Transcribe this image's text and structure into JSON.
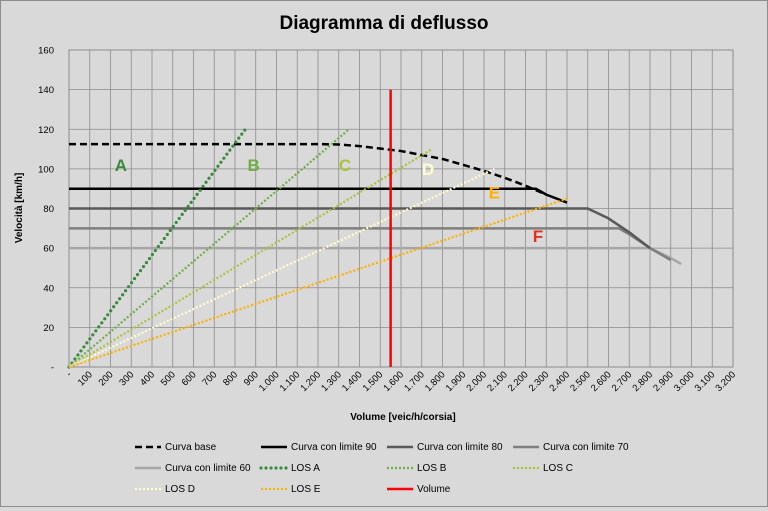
{
  "chart_data": {
    "type": "line",
    "title": "Diagramma di deflusso",
    "xlabel": "Volume [veic/h/corsia]",
    "ylabel": "Velocità [km/h]",
    "xlim": [
      0,
      3200
    ],
    "ylim": [
      0,
      160
    ],
    "x_ticks": [
      "-",
      "100",
      "200",
      "300",
      "400",
      "500",
      "600",
      "700",
      "800",
      "900",
      "1.000",
      "1.100",
      "1.200",
      "1.300",
      "1.400",
      "1.500",
      "1.600",
      "1.700",
      "1.800",
      "1.900",
      "2.000",
      "2.100",
      "2.200",
      "2.300",
      "2.400",
      "2.500",
      "2.600",
      "2.700",
      "2.800",
      "2.900",
      "3.000",
      "3.100",
      "3.200"
    ],
    "y_ticks": [
      "-",
      "20",
      "40",
      "60",
      "80",
      "100",
      "120",
      "140",
      "160"
    ],
    "grid": true,
    "legend_position": "bottom",
    "series": [
      {
        "name": "Curva base",
        "color": "#000000",
        "style": "dashed",
        "x": [
          0,
          400,
          800,
          1200,
          1300,
          1400,
          1600,
          1800,
          2000,
          2100,
          2200,
          2300
        ],
        "y": [
          112.5,
          112.5,
          112.5,
          112.5,
          112.3,
          111.5,
          109,
          105,
          99,
          95.5,
          91.5,
          87
        ]
      },
      {
        "name": "Curva con limite 90",
        "color": "#000000",
        "style": "solid",
        "x": [
          0,
          2250,
          2300,
          2400
        ],
        "y": [
          90,
          90,
          87,
          83
        ]
      },
      {
        "name": "Curva con limite 80",
        "color": "#595959",
        "style": "solid",
        "x": [
          0,
          2500,
          2600,
          2700,
          2800
        ],
        "y": [
          80,
          80,
          75,
          68,
          60
        ]
      },
      {
        "name": "Curva con limite 70",
        "color": "#7f7f7f",
        "style": "solid",
        "x": [
          0,
          2650,
          2700,
          2800,
          2900
        ],
        "y": [
          70,
          70,
          67,
          60,
          54
        ]
      },
      {
        "name": "Curva con limite 60",
        "color": "#a6a6a6",
        "style": "solid",
        "x": [
          0,
          2800,
          2900,
          2950
        ],
        "y": [
          60,
          60,
          55,
          52
        ]
      },
      {
        "name": "LOS A",
        "color": "#3a8a3c",
        "style": "dotted-round",
        "x": [
          0,
          850
        ],
        "y": [
          0,
          120
        ]
      },
      {
        "name": "LOS B",
        "color": "#70ad47",
        "style": "dotted",
        "x": [
          0,
          1350
        ],
        "y": [
          0,
          120
        ]
      },
      {
        "name": "LOS C",
        "color": "#a9c23f",
        "style": "dotted",
        "x": [
          0,
          1750
        ],
        "y": [
          0,
          110
        ]
      },
      {
        "name": "LOS D",
        "color": "#ffffcc",
        "style": "dotted",
        "x": [
          0,
          2050
        ],
        "y": [
          0,
          100
        ]
      },
      {
        "name": "LOS E",
        "color": "#ffb000",
        "style": "dotted",
        "x": [
          0,
          2400
        ],
        "y": [
          0,
          85
        ]
      },
      {
        "name": "Volume",
        "color": "#ff0000",
        "style": "solid",
        "x": [
          1550,
          1550
        ],
        "y": [
          0,
          140
        ]
      }
    ],
    "annotations": [
      {
        "text": "A",
        "x": 250,
        "y": 99,
        "color": "#3a8a3c"
      },
      {
        "text": "B",
        "x": 890,
        "y": 99,
        "color": "#70ad47"
      },
      {
        "text": "C",
        "x": 1330,
        "y": 99,
        "color": "#a9c23f"
      },
      {
        "text": "D",
        "x": 1730,
        "y": 97,
        "color": "#ffffcc"
      },
      {
        "text": "E",
        "x": 2050,
        "y": 85,
        "color": "#ffb000"
      },
      {
        "text": "F",
        "x": 2260,
        "y": 63,
        "color": "#e03020"
      }
    ]
  }
}
